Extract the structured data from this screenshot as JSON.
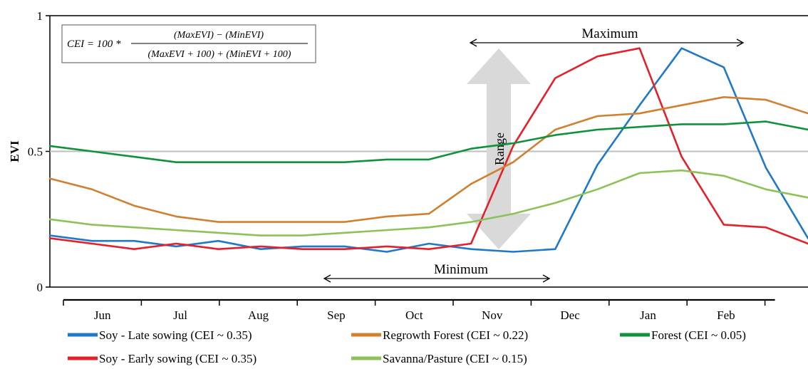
{
  "chart_data": {
    "type": "line",
    "title": "",
    "xlabel": "",
    "ylabel": "EVI",
    "ylim": [
      0,
      1
    ],
    "yticks": [
      "0",
      "0.5",
      "1"
    ],
    "reference_line": 0.5,
    "months": [
      "Jun",
      "Jul",
      "Aug",
      "Sep",
      "Oct",
      "Nov",
      "Dec",
      "Jan",
      "Feb"
    ],
    "x": [
      "May-20",
      "Jun-05",
      "Jun-21",
      "Jul-07",
      "Jul-23",
      "Aug-08",
      "Aug-24",
      "Sep-09",
      "Sep-25",
      "Oct-11",
      "Oct-27",
      "Nov-12",
      "Nov-28",
      "Dec-14",
      "Dec-30",
      "Jan-15",
      "Jan-31",
      "Feb-16",
      "Mar-04"
    ],
    "series": [
      {
        "name": "Soy - Late sowing (CEI ~ 0.35)",
        "color": "#1f78c8",
        "values": [
          0.19,
          0.17,
          0.17,
          0.15,
          0.17,
          0.14,
          0.15,
          0.15,
          0.13,
          0.16,
          0.14,
          0.13,
          0.14,
          0.45,
          0.67,
          0.88,
          0.81,
          0.44,
          0.18
        ]
      },
      {
        "name": "Soy - Early sowing (CEI ~ 0.35)",
        "color": "#e4202a",
        "values": [
          0.18,
          0.16,
          0.14,
          0.16,
          0.14,
          0.15,
          0.14,
          0.14,
          0.15,
          0.14,
          0.16,
          0.52,
          0.77,
          0.85,
          0.88,
          0.48,
          0.23,
          0.22,
          0.16
        ]
      },
      {
        "name": "Regrowth Forest (CEI ~ 0.22)",
        "color": "#d08030",
        "values": [
          0.4,
          0.36,
          0.3,
          0.26,
          0.24,
          0.24,
          0.24,
          0.24,
          0.26,
          0.27,
          0.38,
          0.46,
          0.58,
          0.63,
          0.64,
          0.67,
          0.7,
          0.69,
          0.64
        ]
      },
      {
        "name": "Forest (CEI ~ 0.05)",
        "color": "#10913c",
        "values": [
          0.52,
          0.5,
          0.48,
          0.46,
          0.46,
          0.46,
          0.46,
          0.46,
          0.47,
          0.47,
          0.51,
          0.53,
          0.56,
          0.58,
          0.59,
          0.6,
          0.6,
          0.61,
          0.58
        ]
      },
      {
        "name": "Savanna/Pasture (CEI ~ 0.15)",
        "color": "#8cc257",
        "values": [
          0.25,
          0.23,
          0.22,
          0.21,
          0.2,
          0.19,
          0.19,
          0.2,
          0.21,
          0.22,
          0.24,
          0.27,
          0.31,
          0.36,
          0.42,
          0.43,
          0.41,
          0.36,
          0.33
        ]
      }
    ],
    "annotations": {
      "maximum": "Maximum",
      "minimum": "Minimum",
      "range": "Range"
    },
    "formula": {
      "lhs": "CEI = 100 *",
      "numerator": "(MaxEVI) − (MinEVI)",
      "denominator": "(MaxEVI + 100) + (MinEVI + 100)"
    }
  }
}
